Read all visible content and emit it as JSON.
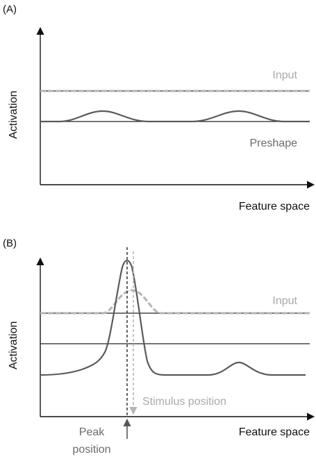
{
  "panel_a": {
    "label": "(A)",
    "ylabel": "Activation",
    "xlabel": "Feature space",
    "input_label": "Input",
    "preshape_label": "Preshape"
  },
  "panel_b": {
    "label": "(B)",
    "ylabel": "Activation",
    "xlabel": "Feature space",
    "input_label": "Input",
    "stimulus_label": "Stimulus position",
    "peak_label_line1": "Peak",
    "peak_label_line2": "position"
  },
  "colors": {
    "axis": "#111111",
    "threshold": "#222222",
    "activation": "#5a5a5a",
    "input": "#b5b5b5",
    "peak_arrow": "#555555"
  }
}
